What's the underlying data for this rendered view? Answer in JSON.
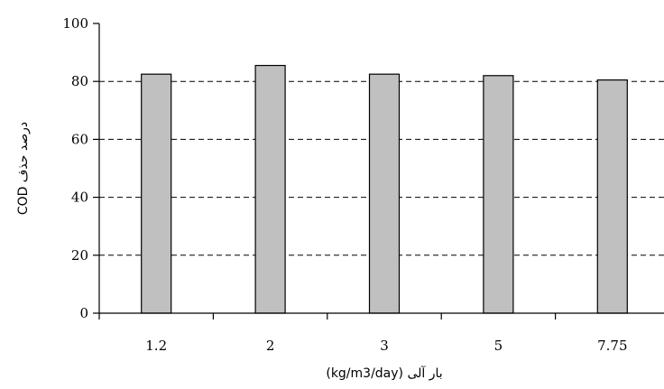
{
  "chart_data": {
    "type": "bar",
    "categories": [
      "1.2",
      "2",
      "3",
      "5",
      "7.75"
    ],
    "values": [
      82.5,
      85.5,
      82.5,
      82,
      80.5
    ],
    "xlabel": "بار آلی (kg/m3/day)",
    "ylabel": "درصد حذف COD",
    "ylim": [
      0,
      100
    ],
    "yticks": [
      0,
      20,
      40,
      60,
      80,
      100
    ],
    "grid": true,
    "bar_color": "#c0c0c0"
  }
}
